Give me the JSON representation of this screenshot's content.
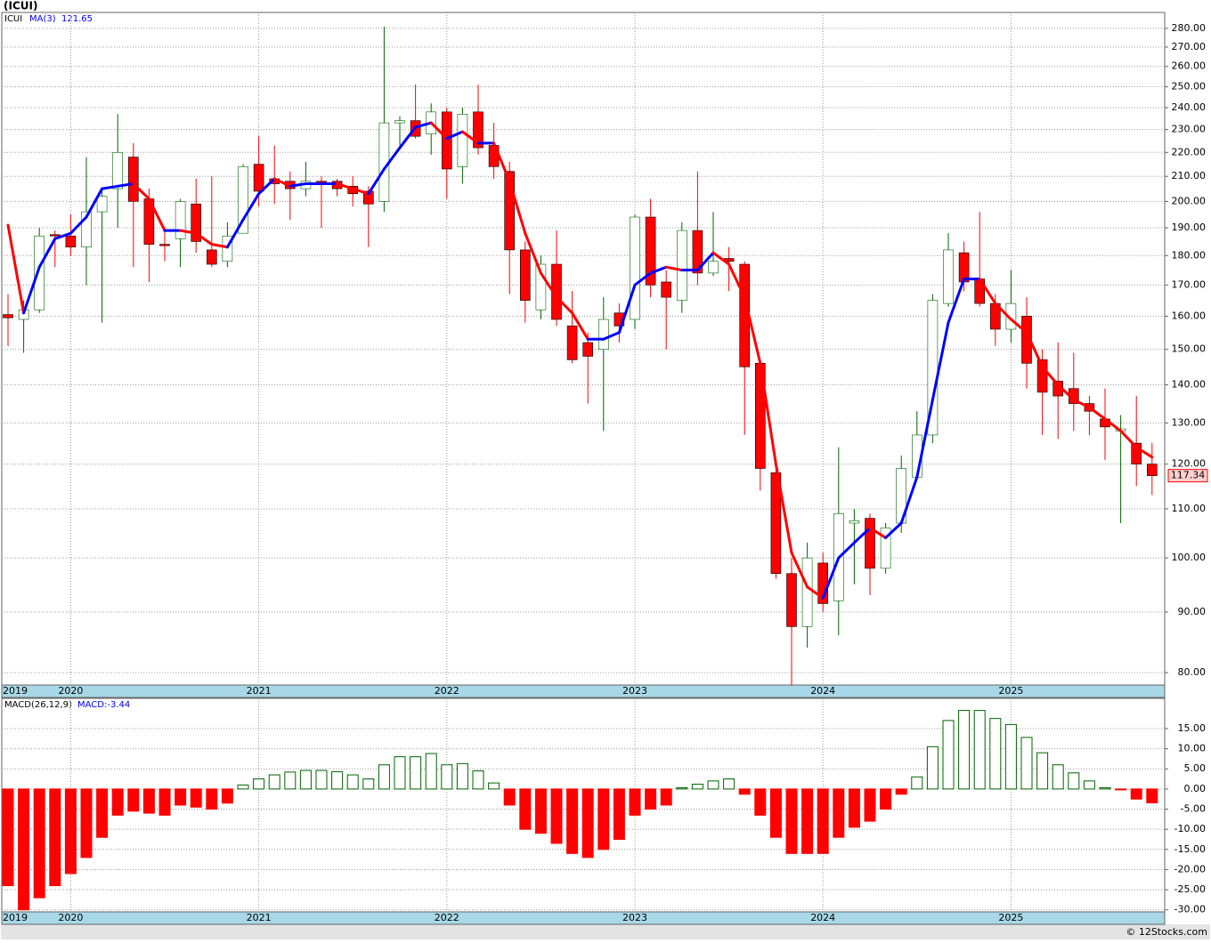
{
  "title": "(ICUI)",
  "watermark": "© 12Stocks.com",
  "chart_data": [
    {
      "type": "candlestick",
      "log": true,
      "grid": true,
      "categories": [
        "2019",
        null,
        null,
        null,
        "2020",
        null,
        null,
        null,
        null,
        null,
        null,
        null,
        null,
        null,
        null,
        null,
        "2021",
        null,
        null,
        null,
        null,
        null,
        null,
        null,
        null,
        null,
        null,
        null,
        "2022",
        null,
        null,
        null,
        null,
        null,
        null,
        null,
        null,
        null,
        null,
        null,
        "2023",
        null,
        null,
        null,
        null,
        null,
        null,
        null,
        null,
        null,
        null,
        null,
        "2024",
        null,
        null,
        null,
        null,
        null,
        null,
        null,
        null,
        null,
        null,
        null,
        "2025",
        null,
        null,
        null,
        null,
        null,
        null,
        null,
        null,
        null
      ],
      "ylim": [
        78.1,
        288.8
      ],
      "yticks": [
        {
          "value": 80,
          "label": "80.00"
        },
        {
          "value": 90,
          "label": "90.00"
        },
        {
          "value": 100,
          "label": "100.00"
        },
        {
          "value": 110,
          "label": "110.00"
        },
        {
          "value": 120,
          "label": "120.00"
        },
        {
          "value": 130,
          "label": "130.00"
        },
        {
          "value": 140,
          "label": "140.00"
        },
        {
          "value": 150,
          "label": "150.00"
        },
        {
          "value": 160,
          "label": "160.00"
        },
        {
          "value": 170,
          "label": "170.00"
        },
        {
          "value": 180,
          "label": "180.00"
        },
        {
          "value": 190,
          "label": "190.00"
        },
        {
          "value": 200,
          "label": "200.00"
        },
        {
          "value": 210,
          "label": "210.00"
        },
        {
          "value": 220,
          "label": "220.00"
        },
        {
          "value": 230,
          "label": "230.00"
        },
        {
          "value": 240,
          "label": "240.00"
        },
        {
          "value": 250,
          "label": "250.00"
        },
        {
          "value": 260,
          "label": "260.00"
        },
        {
          "value": 270,
          "label": "270.00"
        },
        {
          "value": 280,
          "label": "280.00"
        }
      ],
      "series": [
        {
          "name": "ICUI",
          "up_color": "#006400",
          "down_color": "#ff0000",
          "open": [
            160.5,
            159,
            162,
            187.5,
            187,
            183,
            196,
            205,
            218,
            201,
            184,
            186,
            199,
            182,
            178,
            188,
            215,
            209,
            208,
            205,
            208,
            208,
            206,
            204,
            200,
            233,
            234,
            228,
            238,
            214,
            238,
            223,
            212,
            182,
            162,
            177,
            157,
            152,
            150,
            161,
            159,
            194,
            171,
            165,
            189,
            174,
            179,
            177,
            146,
            118,
            97,
            87.5,
            99,
            92,
            107,
            108,
            98,
            107,
            117,
            127,
            164,
            181,
            172,
            164,
            156,
            160,
            147,
            141,
            139,
            135,
            131,
            128,
            125,
            120
          ],
          "high": [
            167,
            165,
            190,
            189,
            195,
            218,
            205,
            237,
            224,
            205,
            189,
            201,
            209,
            210,
            192,
            215,
            227,
            223,
            212,
            216,
            210,
            209,
            210,
            206,
            281,
            236,
            251,
            242,
            240,
            240,
            251,
            233,
            216,
            185,
            180,
            189,
            168,
            155,
            166,
            164,
            195,
            201,
            175,
            192,
            212,
            196,
            183,
            178,
            147,
            120,
            100,
            103,
            101,
            124,
            110,
            109,
            107,
            122,
            133,
            167,
            188,
            185,
            196,
            167,
            175,
            166,
            150,
            152,
            149,
            137,
            139,
            132,
            137,
            125
          ],
          "low": [
            151,
            149,
            161,
            176,
            180,
            170,
            158,
            190,
            176,
            171,
            178,
            176,
            181,
            176,
            176,
            188,
            198,
            199,
            193,
            202,
            190,
            202,
            198,
            183,
            196,
            223,
            226,
            219,
            201,
            207,
            219,
            209,
            167,
            158,
            159,
            157,
            146,
            135,
            128,
            152,
            156,
            166,
            150,
            161,
            170,
            173,
            168,
            127,
            114,
            96,
            78,
            84,
            90,
            86,
            95,
            93,
            97,
            105,
            117,
            125,
            163,
            168,
            163,
            151,
            152,
            139,
            127,
            126,
            128,
            127,
            121,
            107,
            115,
            113
          ],
          "close": [
            159.5,
            162,
            187,
            187,
            183,
            196,
            202,
            220,
            200,
            184,
            183.5,
            200,
            185,
            177,
            187,
            214,
            204,
            207,
            205,
            208,
            207,
            205,
            203,
            199,
            233,
            234,
            227,
            238,
            213,
            237,
            222,
            214,
            182,
            165,
            177,
            159,
            147,
            148,
            159,
            157,
            194,
            170,
            166,
            189,
            174,
            178,
            178,
            145,
            119,
            97,
            87.5,
            100,
            91.5,
            109,
            107.5,
            98,
            106,
            119,
            127,
            165,
            182,
            171,
            164,
            156,
            164,
            146,
            138,
            137,
            135,
            133,
            129,
            128.5,
            120,
            117.34
          ]
        },
        {
          "name": "MA(3)",
          "type": "line",
          "up_color": "#0000ff",
          "down_color": "#ff0000",
          "values": [
            191,
            161,
            176,
            186,
            188,
            194,
            205,
            206,
            207,
            201,
            189,
            189,
            188,
            184,
            183,
            193,
            203,
            209,
            206,
            207,
            207,
            207,
            205,
            203,
            213,
            222,
            231,
            233,
            226,
            229,
            224,
            224,
            208,
            188,
            174,
            166,
            161,
            153,
            153,
            155,
            170,
            174,
            176,
            175,
            175,
            181,
            177,
            166,
            146,
            120,
            101,
            94.5,
            92.5,
            100,
            103,
            106,
            104,
            107,
            117,
            136,
            158,
            172,
            172,
            164,
            159,
            155,
            145,
            140,
            136,
            134,
            131,
            128,
            124,
            121.65
          ]
        }
      ]
    },
    {
      "type": "bar",
      "title": "MACD(26,12,9)",
      "value_label": "MACD:-3.44",
      "up_color": "#006400",
      "down_color": "#ff0000",
      "grid": true,
      "categories": [
        "2019",
        null,
        null,
        null,
        "2020",
        null,
        null,
        null,
        null,
        null,
        null,
        null,
        null,
        null,
        null,
        null,
        "2021",
        null,
        null,
        null,
        null,
        null,
        null,
        null,
        null,
        null,
        null,
        null,
        "2022",
        null,
        null,
        null,
        null,
        null,
        null,
        null,
        null,
        null,
        null,
        null,
        "2023",
        null,
        null,
        null,
        null,
        null,
        null,
        null,
        null,
        null,
        null,
        null,
        "2024",
        null,
        null,
        null,
        null,
        null,
        null,
        null,
        null,
        null,
        null,
        null,
        "2025",
        null,
        null,
        null,
        null,
        null,
        null,
        null,
        null,
        null
      ],
      "ylim": [
        -30.5,
        22.5
      ],
      "yticks": [
        {
          "value": 15,
          "label": "15.00"
        },
        {
          "value": 10,
          "label": "10.00"
        },
        {
          "value": 5,
          "label": "5.00"
        },
        {
          "value": 0,
          "label": "0.00"
        },
        {
          "value": -5,
          "label": "-5.00"
        },
        {
          "value": -10,
          "label": "-10.00"
        },
        {
          "value": -15,
          "label": "-15.00"
        },
        {
          "value": -20,
          "label": "-20.00"
        },
        {
          "value": -25,
          "label": "-25.00"
        },
        {
          "value": -30,
          "label": "-30.00"
        }
      ],
      "values": [
        -24,
        -30,
        -27,
        -24,
        -21,
        -17,
        -12,
        -6.5,
        -5.5,
        -6,
        -6.5,
        -4,
        -4.5,
        -5,
        -3.5,
        1,
        2.5,
        3.5,
        4.2,
        4.6,
        4.6,
        4.3,
        3.5,
        2.5,
        6,
        8,
        8,
        8.8,
        6,
        6.3,
        4.5,
        1.5,
        -4,
        -10,
        -11,
        -13.5,
        -16,
        -17,
        -15,
        -12.5,
        -6.5,
        -5,
        -4,
        0.3,
        1.2,
        2,
        2.5,
        -1.3,
        -6.5,
        -12,
        -16,
        -16,
        -16,
        -12,
        -9.5,
        -8,
        -5,
        -1.3,
        3,
        10.5,
        17,
        19.5,
        19.5,
        17.5,
        16,
        12.8,
        9,
        6,
        4,
        2,
        0.3,
        -0.2,
        -2.5,
        -3.44
      ]
    }
  ]
}
